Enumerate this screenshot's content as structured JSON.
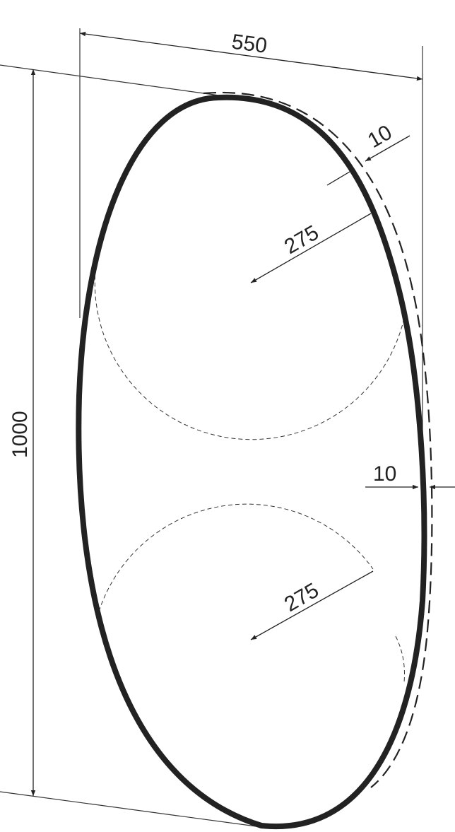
{
  "dimensions": {
    "width": "550",
    "height": "1000",
    "radius_upper": "275",
    "radius_lower": "275",
    "offset_top": "10",
    "offset_side": "10"
  },
  "colors": {
    "line": "#222222",
    "background": "#ffffff"
  }
}
